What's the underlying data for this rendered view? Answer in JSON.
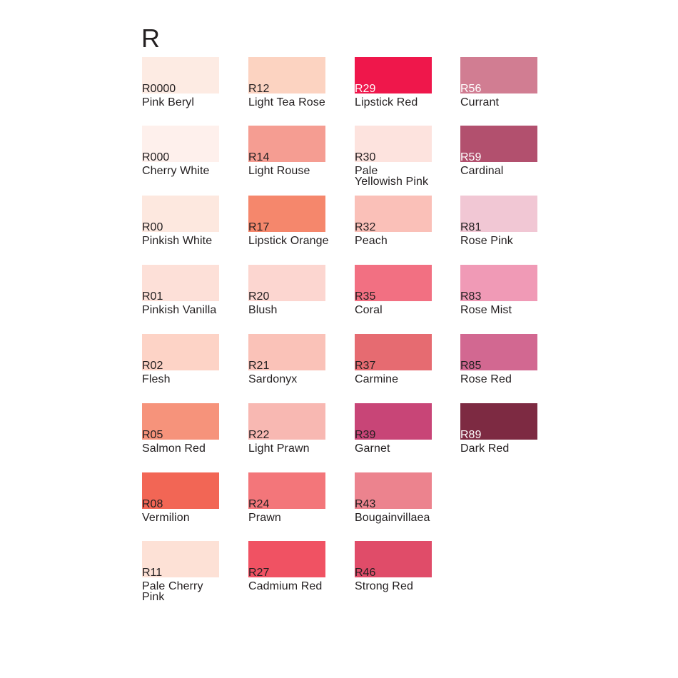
{
  "title": "R",
  "columns": [
    [
      {
        "code": "R0000",
        "name": "Pink Beryl",
        "color": "#fdebe3"
      },
      {
        "code": "R000",
        "name": "Cherry White",
        "color": "#fef0ec"
      },
      {
        "code": "R00",
        "name": "Pinkish White",
        "color": "#fde8df"
      },
      {
        "code": "R01",
        "name": "Pinkish Vanilla",
        "color": "#fde0d8"
      },
      {
        "code": "R02",
        "name": "Flesh",
        "color": "#fdd3c6"
      },
      {
        "code": "R05",
        "name": "Salmon Red",
        "color": "#f6937b"
      },
      {
        "code": "R08",
        "name": "Vermilion",
        "color": "#f26655"
      },
      {
        "code": "R11",
        "name": "Pale Cherry Pink",
        "color": "#fde1d6"
      }
    ],
    [
      {
        "code": "R12",
        "name": "Light Tea Rose",
        "color": "#fcd3c1"
      },
      {
        "code": "R14",
        "name": "Light Rouse",
        "color": "#f59d92"
      },
      {
        "code": "R17",
        "name": "Lipstick Orange",
        "color": "#f5876c"
      },
      {
        "code": "R20",
        "name": "Blush",
        "color": "#fcd6d0"
      },
      {
        "code": "R21",
        "name": "Sardonyx",
        "color": "#fac2b8"
      },
      {
        "code": "R22",
        "name": "Light Prawn",
        "color": "#f8b8b2"
      },
      {
        "code": "R24",
        "name": "Prawn",
        "color": "#f3767a"
      },
      {
        "code": "R27",
        "name": "Cadmium Red",
        "color": "#f05263"
      }
    ],
    [
      {
        "code": "R29",
        "name": "Lipstick Red",
        "color": "#ef174b",
        "light": true
      },
      {
        "code": "R30",
        "name": "Pale\nYellowish Pink",
        "color": "#fde3de"
      },
      {
        "code": "R32",
        "name": "Peach",
        "color": "#fac0b8"
      },
      {
        "code": "R35",
        "name": "Coral",
        "color": "#f27082"
      },
      {
        "code": "R37",
        "name": "Carmine",
        "color": "#e66b71"
      },
      {
        "code": "R39",
        "name": "Garnet",
        "color": "#c84577"
      },
      {
        "code": "R43",
        "name": "Bougainvillaea",
        "color": "#ec838e"
      },
      {
        "code": "R46",
        "name": "Strong Red",
        "color": "#e04c69"
      }
    ],
    [
      {
        "code": "R56",
        "name": "Currant",
        "color": "#d17d92",
        "light": true
      },
      {
        "code": "R59",
        "name": "Cardinal",
        "color": "#b2506e",
        "light": true
      },
      {
        "code": "R81",
        "name": "Rose Pink",
        "color": "#f1c7d4"
      },
      {
        "code": "R83",
        "name": "Rose Mist",
        "color": "#f09ab6"
      },
      {
        "code": "R85",
        "name": "Rose Red",
        "color": "#d26891"
      },
      {
        "code": "R89",
        "name": "Dark Red",
        "color": "#7d2a42",
        "light": true
      }
    ]
  ]
}
